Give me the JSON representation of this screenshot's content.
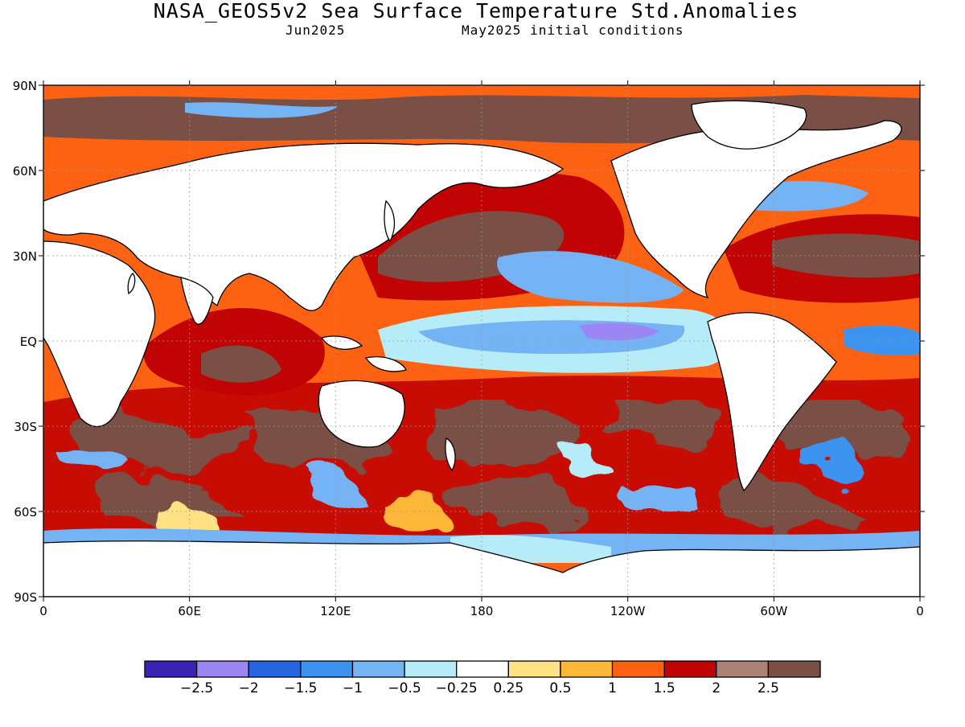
{
  "header": {
    "title": "NASA_GEOS5v2 Sea Surface Temperature Std.Anomalies",
    "valid_month": "Jun2025",
    "init": "May2025 initial conditions"
  },
  "axes": {
    "lat_labels": [
      "90N",
      "60N",
      "30N",
      "EQ",
      "30S",
      "60S",
      "90S"
    ],
    "lon_labels": [
      "0",
      "60E",
      "120E",
      "180",
      "120W",
      "60W",
      "0"
    ]
  },
  "colorbar": {
    "colors": [
      "#3b22b5",
      "#9b86f3",
      "#2566e0",
      "#3d93f0",
      "#74b3f4",
      "#b6ecf8",
      "#ffffff",
      "#ffe284",
      "#fdb738",
      "#fd6212",
      "#c10303",
      "#ad8175",
      "#7a4f45"
    ],
    "labels": [
      "−2.5",
      "−2",
      "−1.5",
      "−1",
      "−0.5",
      "−0.25",
      "0.25",
      "0.5",
      "1",
      "1.5",
      "2",
      "2.5"
    ]
  },
  "colors": {
    "land": "#ffffff",
    "coast": "#000000",
    "grid": "#9a9a9a"
  }
}
